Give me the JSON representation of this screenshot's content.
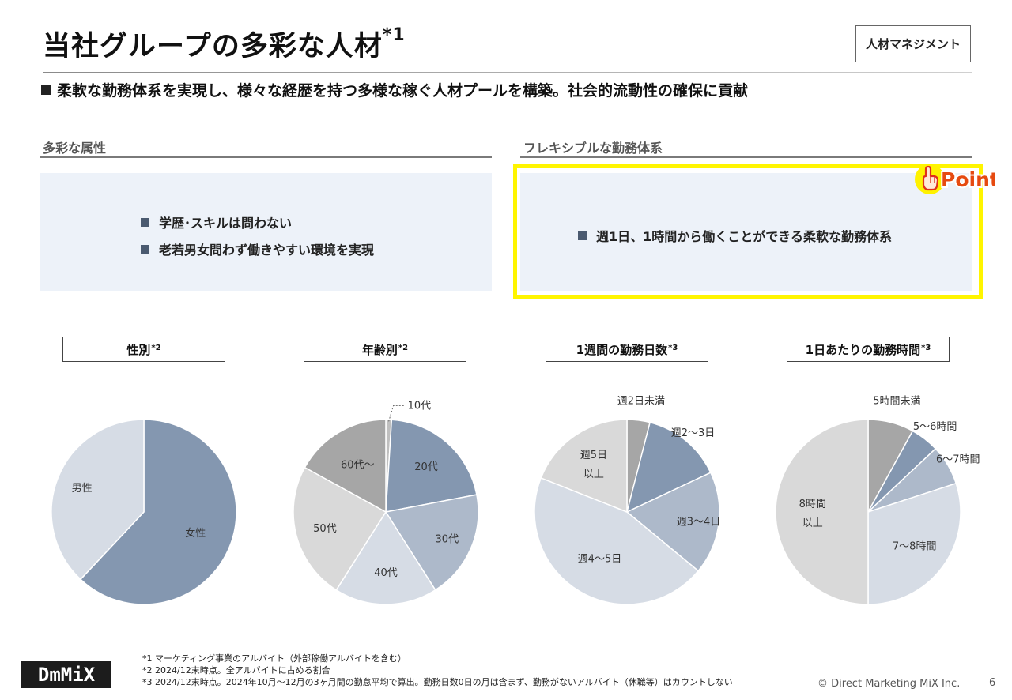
{
  "header": {
    "title": "当社グループの多彩な人材",
    "title_note": "*1",
    "tag": "人材マネジメント",
    "subtitle": "柔軟な勤務体系を実現し、様々な経歴を持つ多様な稼ぐ人材プールを構築。社会的流動性の確保に貢献"
  },
  "left_section": {
    "heading": "多彩な属性",
    "bullets": [
      "学歴･スキルは問わない",
      "老若男女問わず働きやすい環境を実現"
    ]
  },
  "right_section": {
    "heading": "フレキシブルな勤務体系",
    "bullets": [
      "週1日、1時間から働くことができる柔軟な勤務体系"
    ],
    "badge": "Point"
  },
  "chart_data": [
    {
      "type": "pie",
      "title": "性別",
      "title_note": "*2",
      "categories": [
        "女性",
        "男性"
      ],
      "values": [
        62,
        38
      ],
      "colors": [
        "#8497b0",
        "#d6dce5"
      ]
    },
    {
      "type": "pie",
      "title": "年齢別",
      "title_note": "*2",
      "categories": [
        "10代",
        "20代",
        "30代",
        "40代",
        "50代",
        "60代～"
      ],
      "values": [
        1,
        21,
        19,
        18,
        24,
        17
      ],
      "colors": [
        "#bfbfbf",
        "#8497b0",
        "#adb9ca",
        "#d6dce5",
        "#d9d9d9",
        "#a6a6a6"
      ]
    },
    {
      "type": "pie",
      "title": "1週間の勤務日数",
      "title_note": "*3",
      "categories": [
        "週2日未満",
        "週2～3日",
        "週3～4日",
        "週4～5日",
        "週5日以上"
      ],
      "labels": [
        "週2日未満",
        "週2～3日",
        "週3～4日",
        "週4～5日",
        "週5日\n以上"
      ],
      "values": [
        4,
        14,
        18,
        45,
        19
      ],
      "colors": [
        "#a6a6a6",
        "#8497b0",
        "#adb9ca",
        "#d6dce5",
        "#d9d9d9"
      ]
    },
    {
      "type": "pie",
      "title": "1日あたりの勤務時間",
      "title_note": "*3",
      "categories": [
        "5時間未満",
        "5～6時間",
        "6～7時間",
        "7～8時間",
        "8時間以上"
      ],
      "labels": [
        "5時間未満",
        "5～6時間",
        "6～7時間",
        "7～8時間",
        "8時間\n以上"
      ],
      "values": [
        8,
        5,
        7,
        30,
        50
      ],
      "colors": [
        "#a6a6a6",
        "#8497b0",
        "#adb9ca",
        "#d6dce5",
        "#d9d9d9"
      ]
    }
  ],
  "footnotes": [
    "*1  マーケティング事業のアルバイト（外部稼働アルバイトを含む）",
    "*2  2024/12末時点。全アルバイトに占める割合",
    "*3  2024/12末時点。2024年10月～12月の3ヶ月間の勤怠平均で算出。勤務日数0日の月は含まず、勤務がないアルバイト（休職等）はカウントしない"
  ],
  "footer": {
    "logo": "DmMiX",
    "copyright": "© Direct Marketing MiX Inc.",
    "page": "6"
  }
}
